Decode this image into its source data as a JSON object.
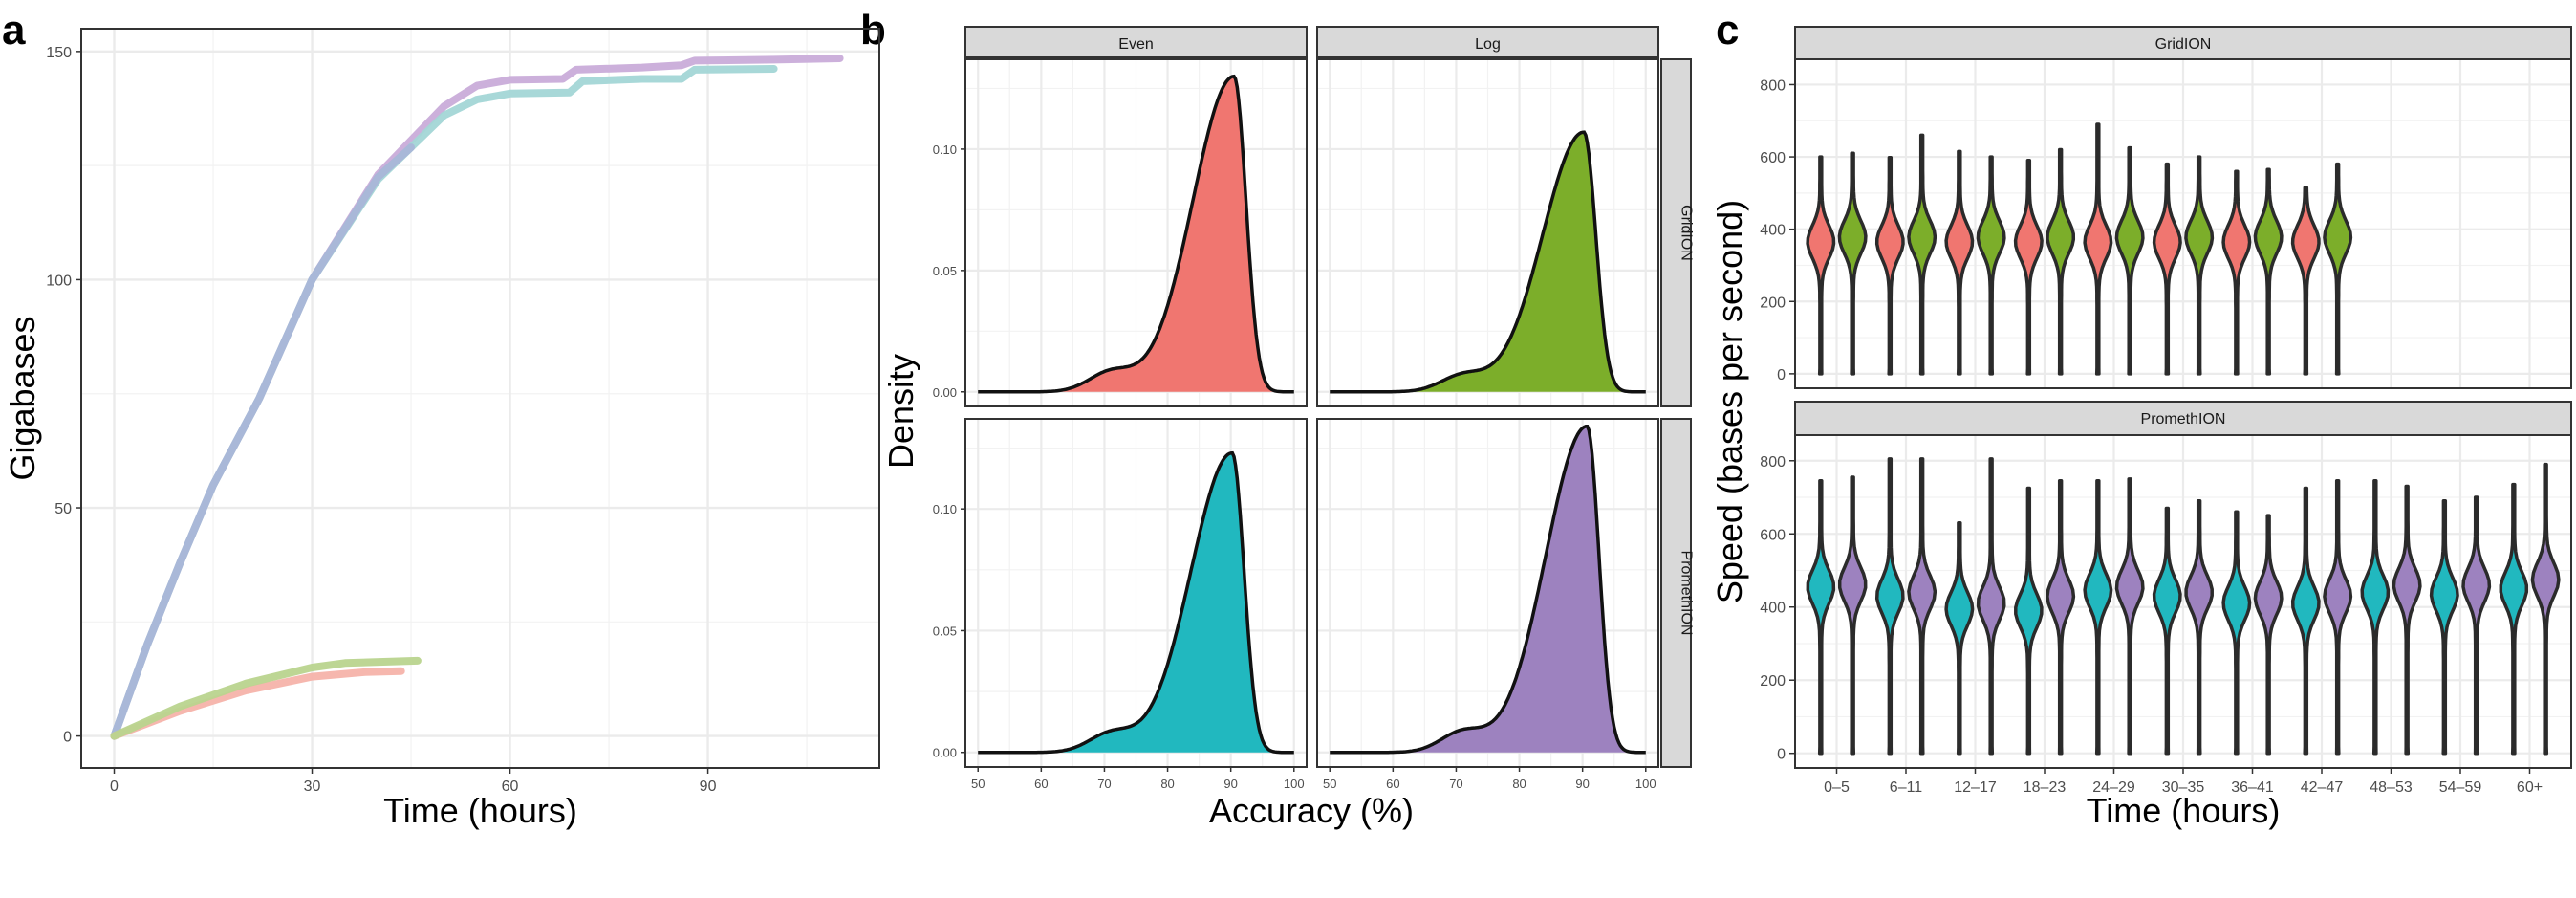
{
  "panels": [
    {
      "letter": "a"
    },
    {
      "letter": "b"
    },
    {
      "letter": "c"
    }
  ],
  "chart_data": [
    {
      "panel": "a",
      "type": "line",
      "xlabel": "Time (hours)",
      "ylabel": "Gigabases",
      "xlim": [
        -5,
        116
      ],
      "ylim": [
        -7,
        155
      ],
      "xticks": [
        0,
        30,
        60,
        90
      ],
      "yticks": [
        0,
        50,
        100,
        150
      ],
      "grid": true,
      "series": [
        {
          "color": "#c9acd9",
          "points": [
            [
              0,
              0
            ],
            [
              5,
              20
            ],
            [
              10,
              38
            ],
            [
              15,
              55
            ],
            [
              22,
              74
            ],
            [
              30,
              100
            ],
            [
              40,
              123
            ],
            [
              50,
              138
            ],
            [
              55,
              142.5
            ],
            [
              60,
              143.8
            ],
            [
              68,
              144
            ],
            [
              70,
              146
            ],
            [
              80,
              146.5
            ],
            [
              86,
              147
            ],
            [
              88,
              148
            ],
            [
              100,
              148.2
            ],
            [
              110,
              148.5
            ]
          ]
        },
        {
          "color": "#a3d6d6",
          "points": [
            [
              0,
              0
            ],
            [
              5,
              20
            ],
            [
              10,
              38
            ],
            [
              15,
              55
            ],
            [
              22,
              74
            ],
            [
              30,
              100
            ],
            [
              40,
              122
            ],
            [
              50,
              136
            ],
            [
              55,
              139.5
            ],
            [
              60,
              140.8
            ],
            [
              69,
              141
            ],
            [
              71,
              143.5
            ],
            [
              80,
              144
            ],
            [
              86,
              144
            ],
            [
              88,
              146
            ],
            [
              100,
              146.2
            ]
          ]
        },
        {
          "color": "#a9b6d8",
          "points": [
            [
              0,
              0
            ],
            [
              5,
              20
            ],
            [
              10,
              38
            ],
            [
              15,
              55
            ],
            [
              22,
              74
            ],
            [
              30,
              100
            ],
            [
              40,
              122.5
            ],
            [
              45,
              129
            ]
          ]
        },
        {
          "color": "#f5b3aa",
          "points": [
            [
              0,
              0
            ],
            [
              10,
              5.5
            ],
            [
              20,
              10
            ],
            [
              30,
              13
            ],
            [
              38,
              14
            ],
            [
              43.5,
              14.2
            ]
          ]
        },
        {
          "color": "#b9d48e",
          "points": [
            [
              0,
              0
            ],
            [
              10,
              6.5
            ],
            [
              20,
              11.5
            ],
            [
              30,
              15
            ],
            [
              35,
              16
            ],
            [
              46,
              16.5
            ]
          ]
        }
      ]
    },
    {
      "panel": "b",
      "type": "area",
      "xlabel": "Accuracy (%)",
      "ylabel": "Density",
      "xlim": [
        48,
        102
      ],
      "ylim": [
        -0.006,
        0.137
      ],
      "xticks": [
        50,
        60,
        70,
        80,
        90,
        100
      ],
      "yticks": [
        0.0,
        0.05,
        0.1
      ],
      "ytick_labels": [
        "0.00",
        "0.05",
        "0.10"
      ],
      "col_strips": [
        "Even",
        "Log"
      ],
      "row_strips": [
        "GridION",
        "PromethION"
      ],
      "facets": [
        {
          "col": "Even",
          "row": "GridION",
          "color": "#f07670",
          "peak_x": 90.5,
          "peak_y": 0.13
        },
        {
          "col": "Log",
          "row": "GridION",
          "color": "#7cae2a",
          "peak_x": 90.2,
          "peak_y": 0.107
        },
        {
          "col": "Even",
          "row": "PromethION",
          "color": "#21b8bf",
          "peak_x": 90.2,
          "peak_y": 0.123
        },
        {
          "col": "Log",
          "row": "PromethION",
          "color": "#9d82bf",
          "peak_x": 90.7,
          "peak_y": 0.134
        }
      ]
    },
    {
      "panel": "c",
      "type": "violin",
      "xlabel": "Time (hours)",
      "ylabel": "Speed (bases per second)",
      "ylim": [
        -40,
        870
      ],
      "yticks": [
        0,
        200,
        400,
        600,
        800
      ],
      "categories": [
        "0–5",
        "6–11",
        "12–17",
        "18–23",
        "24–29",
        "30–35",
        "36–41",
        "42–47",
        "48–53",
        "54–59",
        "60+"
      ],
      "facets": [
        {
          "strip": "GridION",
          "violins": [
            {
              "group": 0,
              "color": "#f07670",
              "center": 365,
              "max": 600
            },
            {
              "group": 0,
              "color": "#7cae2a",
              "center": 378,
              "max": 610
            },
            {
              "group": 1,
              "color": "#f07670",
              "center": 365,
              "max": 598
            },
            {
              "group": 1,
              "color": "#7cae2a",
              "center": 378,
              "max": 660
            },
            {
              "group": 2,
              "color": "#f07670",
              "center": 365,
              "max": 615
            },
            {
              "group": 2,
              "color": "#7cae2a",
              "center": 378,
              "max": 600
            },
            {
              "group": 3,
              "color": "#f07670",
              "center": 365,
              "max": 590
            },
            {
              "group": 3,
              "color": "#7cae2a",
              "center": 378,
              "max": 620
            },
            {
              "group": 4,
              "color": "#f07670",
              "center": 365,
              "max": 690
            },
            {
              "group": 4,
              "color": "#7cae2a",
              "center": 378,
              "max": 625
            },
            {
              "group": 5,
              "color": "#f07670",
              "center": 365,
              "max": 580
            },
            {
              "group": 5,
              "color": "#7cae2a",
              "center": 378,
              "max": 600
            },
            {
              "group": 6,
              "color": "#f07670",
              "center": 365,
              "max": 560
            },
            {
              "group": 6,
              "color": "#7cae2a",
              "center": 378,
              "max": 565
            },
            {
              "group": 7,
              "color": "#f07670",
              "center": 365,
              "max": 515
            },
            {
              "group": 7,
              "color": "#7cae2a",
              "center": 378,
              "max": 580
            }
          ]
        },
        {
          "strip": "PromethION",
          "violins": [
            {
              "group": 0,
              "color": "#21b8bf",
              "center": 455,
              "max": 745
            },
            {
              "group": 0,
              "color": "#9d82bf",
              "center": 462,
              "max": 755
            },
            {
              "group": 1,
              "color": "#21b8bf",
              "center": 430,
              "max": 805
            },
            {
              "group": 1,
              "color": "#9d82bf",
              "center": 440,
              "max": 805
            },
            {
              "group": 2,
              "color": "#21b8bf",
              "center": 395,
              "max": 630
            },
            {
              "group": 2,
              "color": "#9d82bf",
              "center": 410,
              "max": 805
            },
            {
              "group": 3,
              "color": "#21b8bf",
              "center": 390,
              "max": 725
            },
            {
              "group": 3,
              "color": "#9d82bf",
              "center": 430,
              "max": 745
            },
            {
              "group": 4,
              "color": "#21b8bf",
              "center": 445,
              "max": 745
            },
            {
              "group": 4,
              "color": "#9d82bf",
              "center": 455,
              "max": 750
            },
            {
              "group": 5,
              "color": "#21b8bf",
              "center": 430,
              "max": 670
            },
            {
              "group": 5,
              "color": "#9d82bf",
              "center": 440,
              "max": 690
            },
            {
              "group": 6,
              "color": "#21b8bf",
              "center": 410,
              "max": 660
            },
            {
              "group": 6,
              "color": "#9d82bf",
              "center": 425,
              "max": 650
            },
            {
              "group": 7,
              "color": "#21b8bf",
              "center": 410,
              "max": 725
            },
            {
              "group": 7,
              "color": "#9d82bf",
              "center": 430,
              "max": 745
            },
            {
              "group": 8,
              "color": "#21b8bf",
              "center": 440,
              "max": 745
            },
            {
              "group": 8,
              "color": "#9d82bf",
              "center": 460,
              "max": 730
            },
            {
              "group": 9,
              "color": "#21b8bf",
              "center": 435,
              "max": 690
            },
            {
              "group": 9,
              "color": "#9d82bf",
              "center": 460,
              "max": 700
            },
            {
              "group": 10,
              "color": "#21b8bf",
              "center": 450,
              "max": 735
            },
            {
              "group": 10,
              "color": "#9d82bf",
              "center": 475,
              "max": 790
            }
          ]
        }
      ]
    }
  ]
}
